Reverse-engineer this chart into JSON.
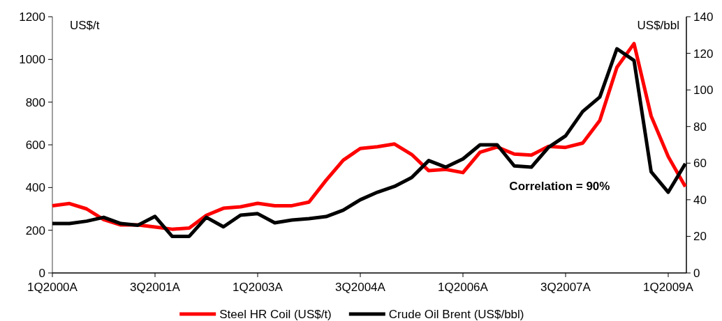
{
  "chart_data": {
    "type": "line",
    "ylabel": "US$/t",
    "y2label": "US$/bbl",
    "categories": [
      "1Q2000A",
      null,
      null,
      null,
      null,
      null,
      "3Q2001A",
      null,
      null,
      null,
      null,
      null,
      "1Q2003A",
      null,
      null,
      null,
      null,
      null,
      "3Q2004A",
      null,
      null,
      null,
      null,
      null,
      "1Q2006A",
      null,
      null,
      null,
      null,
      null,
      "3Q2007A",
      null,
      null,
      null,
      null,
      null,
      "1Q2009A",
      null
    ],
    "series": [
      {
        "name": "Steel HR Coil (US$/t)",
        "color": "#ff0000",
        "values": [
          315,
          325,
          300,
          250,
          225,
          225,
          215,
          205,
          210,
          270,
          303,
          310,
          326,
          315,
          315,
          332,
          434,
          528,
          583,
          591,
          604,
          555,
          479,
          485,
          470,
          565,
          590,
          557,
          552,
          593,
          588,
          608,
          714,
          963,
          1074,
          735,
          545,
          404
        ]
      },
      {
        "name": "Crude Oil Brent (US$/bbl)",
        "color": "#000000",
        "axis": "y2",
        "values": [
          27,
          27,
          28.3,
          30.4,
          27,
          26.1,
          30.9,
          20,
          20,
          30.4,
          25.2,
          31.6,
          32.4,
          27.4,
          28.9,
          29.7,
          30.8,
          34.3,
          40,
          44.1,
          47.3,
          52.1,
          61.4,
          57.8,
          62.3,
          70,
          70,
          58.5,
          57.8,
          68.6,
          74.9,
          88.2,
          96.1,
          122.5,
          116.1,
          55.3,
          44.1,
          59.7
        ]
      }
    ],
    "ylim": [
      0,
      1200
    ],
    "yticks": [
      0,
      200,
      400,
      600,
      800,
      1000,
      1200
    ],
    "y2lim": [
      0,
      140
    ],
    "y2ticks": [
      0,
      20,
      40,
      60,
      80,
      100,
      120,
      140
    ],
    "annotations": [
      "Correlation = 90%"
    ],
    "legend": "bottom",
    "grid": false,
    "marker": "none",
    "line_style": "solid"
  }
}
